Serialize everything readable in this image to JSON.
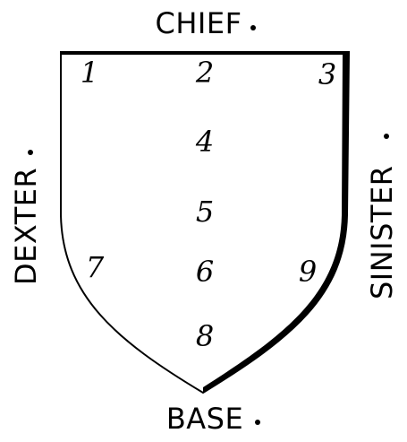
{
  "labels": {
    "chief": "CHIEF",
    "base": "BASE",
    "dexter": "DEXTER",
    "sinister": "SINISTER"
  },
  "points": [
    "1",
    "2",
    "3",
    "4",
    "5",
    "6",
    "7",
    "8",
    "9"
  ],
  "colors": {
    "ink": "#000000",
    "background": "#ffffff"
  }
}
